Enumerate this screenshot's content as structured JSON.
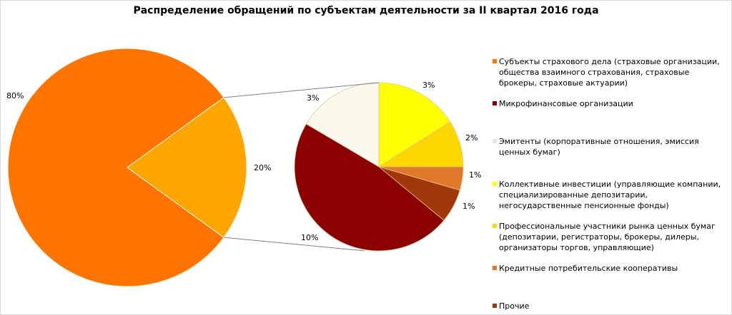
{
  "chart_data": {
    "type": "pie-of-pie",
    "title": "Распределение обращений по субъектам деятельности за II квартал 2016 года",
    "primary": {
      "slices": [
        {
          "name": "Субъекты страхового дела (страховые организации, общества взаимного страхования, страховые брокеры, страховые актуарии)",
          "value": 80,
          "label": "80%",
          "color": "#FF7300"
        },
        {
          "name": "",
          "value": 20,
          "label": "20%",
          "color": "#FFA500"
        }
      ]
    },
    "secondary": {
      "slices": [
        {
          "name": "Коллективные инвестиции (управляющие компании, специализированные депозитарии, негосударственные пенсионные фонды)",
          "value": 3.2,
          "label": "3%",
          "color": "#FFFF00"
        },
        {
          "name": "Профессиональные участники рынка ценных бумаг (депозитарии, регистраторы, брокеры, дилеры, организаторы торгов, управляющие)",
          "value": 1.8,
          "label": "2%",
          "color": "#FFD700"
        },
        {
          "name": "Кредитные потребительские кооперативы",
          "value": 0.9,
          "label": "1%",
          "color": "#E07A2A"
        },
        {
          "name": "Прочие",
          "value": 1.3,
          "label": "1%",
          "color": "#A0380A"
        },
        {
          "name": "Микрофинансовые организации",
          "value": 9.5,
          "label": "10%",
          "color": "#8B0000"
        },
        {
          "name": "Эмитенты (корпоративные отношения, эмиссия ценных бумаг)",
          "value": 3.3,
          "label": "3%",
          "color": "#FBF8EE"
        }
      ]
    },
    "legend": {
      "position": "right",
      "items": [
        {
          "label": "Субъекты страхового дела (страховые организации, общества взаимного страхования, страховые брокеры, страховые актуарии)",
          "color": "#FF7300"
        },
        {
          "label": "Микрофинансовые организации",
          "color": "#8B0000"
        },
        {
          "label": "Эмитенты (корпоративные отношения, эмиссия ценных бумаг)",
          "color": "#E8E6E0"
        },
        {
          "label": "Коллективные инвестиции (управляющие компании, специализированные депозитарии, негосударственные пенсионные фонды)",
          "color": "#FFFF00"
        },
        {
          "label": "Профессиональные участники рынка ценных бумаг (депозитарии, регистраторы, брокеры, дилеры, организаторы торгов, управляющие)",
          "color": "#FFD700"
        },
        {
          "label": "Кредитные потребительские кооперативы",
          "color": "#E07A2A"
        },
        {
          "label": "Прочие",
          "color": "#A0380A"
        }
      ]
    }
  }
}
